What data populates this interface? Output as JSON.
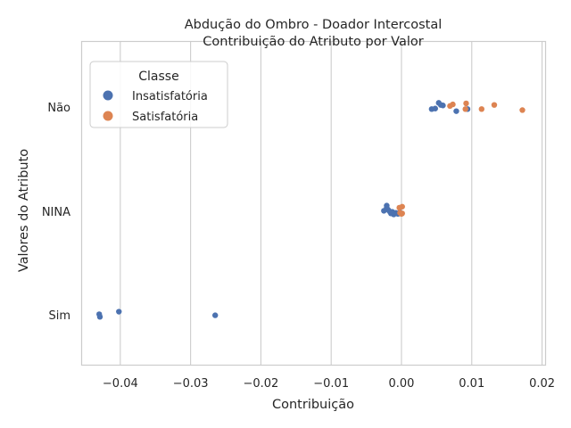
{
  "chart_data": {
    "type": "scatter",
    "title": [
      "Abdução do Ombro - Doador Intercostal",
      "Contribuição do Atributo por Valor"
    ],
    "xlabel": "Contribuição",
    "ylabel": "Valores do Atributo",
    "xlim": [
      -0.0455,
      0.0205
    ],
    "x_ticks": [
      -0.04,
      -0.03,
      -0.02,
      -0.01,
      0.0,
      0.01,
      0.02
    ],
    "x_tick_labels": [
      "−0.04",
      "−0.03",
      "−0.02",
      "−0.01",
      "0.00",
      "0.01",
      "0.02"
    ],
    "categories": [
      "Não",
      "NINA",
      "Sim"
    ],
    "grid": "x",
    "legend": {
      "title": "Classe",
      "position": "top-left",
      "entries": [
        {
          "label": "Insatisfatória",
          "color": "#4c72b0"
        },
        {
          "label": "Satisfatória",
          "color": "#dd8452"
        }
      ]
    },
    "series": [
      {
        "name": "Insatisfatória",
        "color": "#4c72b0",
        "points": [
          {
            "x": 0.0053,
            "y": "Não",
            "j": 0.08
          },
          {
            "x": 0.0056,
            "y": "Não",
            "j": 0.04
          },
          {
            "x": 0.0059,
            "y": "Não",
            "j": 0.03
          },
          {
            "x": 0.0043,
            "y": "Não",
            "j": -0.04
          },
          {
            "x": 0.0048,
            "y": "Não",
            "j": -0.03
          },
          {
            "x": 0.0078,
            "y": "Não",
            "j": -0.08
          },
          {
            "x": 0.0094,
            "y": "Não",
            "j": -0.04
          },
          {
            "x": -0.0021,
            "y": "NINA",
            "j": 0.11
          },
          {
            "x": -0.0021,
            "y": "NINA",
            "j": 0.07
          },
          {
            "x": -0.0019,
            "y": "NINA",
            "j": 0.03
          },
          {
            "x": -0.0025,
            "y": "NINA",
            "j": 0.01
          },
          {
            "x": -0.0017,
            "y": "NINA",
            "j": 0.0
          },
          {
            "x": -0.0013,
            "y": "NINA",
            "j": -0.01
          },
          {
            "x": -0.0015,
            "y": "NINA",
            "j": -0.04
          },
          {
            "x": -0.0011,
            "y": "NINA",
            "j": -0.06
          },
          {
            "x": -0.0008,
            "y": "NINA",
            "j": -0.03
          },
          {
            "x": -0.0005,
            "y": "NINA",
            "j": -0.05
          },
          {
            "x": -0.0002,
            "y": "NINA",
            "j": -0.02
          },
          {
            "x": -0.0402,
            "y": "Sim",
            "j": 0.06
          },
          {
            "x": -0.043,
            "y": "Sim",
            "j": 0.01
          },
          {
            "x": -0.0429,
            "y": "Sim",
            "j": -0.04
          },
          {
            "x": -0.0265,
            "y": "Sim",
            "j": -0.01
          }
        ]
      },
      {
        "name": "Satisfatória",
        "color": "#dd8452",
        "points": [
          {
            "x": 0.0073,
            "y": "Não",
            "j": 0.05
          },
          {
            "x": 0.0069,
            "y": "Não",
            "j": 0.02
          },
          {
            "x": 0.0092,
            "y": "Não",
            "j": 0.07
          },
          {
            "x": 0.0132,
            "y": "Não",
            "j": 0.04
          },
          {
            "x": 0.0114,
            "y": "Não",
            "j": -0.04
          },
          {
            "x": 0.0091,
            "y": "Não",
            "j": -0.04
          },
          {
            "x": 0.0172,
            "y": "Não",
            "j": -0.06
          },
          {
            "x": 0.0001,
            "y": "NINA",
            "j": 0.09
          },
          {
            "x": -0.0003,
            "y": "NINA",
            "j": 0.07
          },
          {
            "x": -0.0002,
            "y": "NINA",
            "j": -0.03
          },
          {
            "x": 0.0,
            "y": "NINA",
            "j": -0.05
          },
          {
            "x": 0.0001,
            "y": "NINA",
            "j": -0.04
          }
        ]
      }
    ]
  }
}
